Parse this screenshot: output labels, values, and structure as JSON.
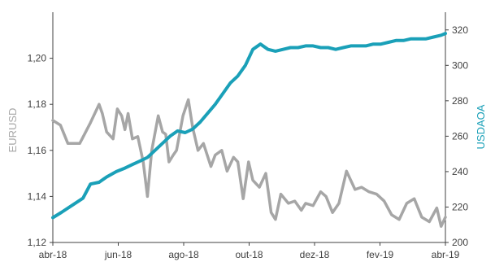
{
  "chart_data": {
    "type": "line",
    "xlabel": "",
    "x_ticks": [
      "abr-18",
      "jun-18",
      "ago-18",
      "out-18",
      "dez-18",
      "fev-19",
      "abr-19"
    ],
    "x_range": [
      "2018-04-02",
      "2019-04-02"
    ],
    "y_left": {
      "label": "EURUSD",
      "range": [
        1.12,
        1.22
      ],
      "ticks": [
        "1,12",
        "1,14",
        "1,16",
        "1,18",
        "1,20"
      ],
      "color": "#a6a6a6"
    },
    "y_right": {
      "label": "USDAOA",
      "range": [
        200,
        330
      ],
      "ticks": [
        "200",
        "220",
        "240",
        "260",
        "280",
        "300",
        "320"
      ],
      "color": "#1aa0b8"
    },
    "grid": false,
    "legend": "none",
    "series": [
      {
        "axis": "left",
        "color": "#a6a6a6",
        "x": [
          "2018-04-02",
          "2018-04-09",
          "2018-04-16",
          "2018-04-20",
          "2018-04-27",
          "2018-05-07",
          "2018-05-15",
          "2018-05-18",
          "2018-05-22",
          "2018-05-28",
          "2018-06-01",
          "2018-06-05",
          "2018-06-08",
          "2018-06-11",
          "2018-06-15",
          "2018-06-20",
          "2018-06-25",
          "2018-06-29",
          "2018-07-03",
          "2018-07-09",
          "2018-07-13",
          "2018-07-16",
          "2018-07-19",
          "2018-07-23",
          "2018-07-26",
          "2018-08-01",
          "2018-08-06",
          "2018-08-10",
          "2018-08-15",
          "2018-08-20",
          "2018-08-27",
          "2018-08-31",
          "2018-09-06",
          "2018-09-11",
          "2018-09-17",
          "2018-09-21",
          "2018-09-26",
          "2018-10-01",
          "2018-10-05",
          "2018-10-11",
          "2018-10-17",
          "2018-10-22",
          "2018-10-26",
          "2018-10-31",
          "2018-11-07",
          "2018-11-13",
          "2018-11-19",
          "2018-11-23",
          "2018-11-30",
          "2018-12-07",
          "2018-12-12",
          "2018-12-18",
          "2018-12-24",
          "2018-12-31",
          "2019-01-08",
          "2019-01-14",
          "2019-01-21",
          "2019-01-28",
          "2019-02-04",
          "2019-02-11",
          "2019-02-18",
          "2019-02-25",
          "2019-03-04",
          "2019-03-11",
          "2019-03-18",
          "2019-03-25",
          "2019-03-29",
          "2019-04-02"
        ],
        "values": [
          1.173,
          1.171,
          1.163,
          1.163,
          1.163,
          1.172,
          1.18,
          1.176,
          1.168,
          1.165,
          1.178,
          1.175,
          1.169,
          1.176,
          1.165,
          1.166,
          1.155,
          1.14,
          1.16,
          1.175,
          1.168,
          1.167,
          1.155,
          1.158,
          1.16,
          1.175,
          1.182,
          1.17,
          1.16,
          1.163,
          1.153,
          1.158,
          1.16,
          1.151,
          1.157,
          1.155,
          1.139,
          1.155,
          1.147,
          1.144,
          1.15,
          1.133,
          1.13,
          1.141,
          1.137,
          1.138,
          1.134,
          1.137,
          1.136,
          1.142,
          1.14,
          1.133,
          1.137,
          1.151,
          1.143,
          1.144,
          1.142,
          1.141,
          1.138,
          1.132,
          1.13,
          1.137,
          1.139,
          1.131,
          1.129,
          1.135,
          1.127,
          1.131
        ]
      },
      {
        "axis": "right",
        "color": "#1aa0b8",
        "x": [
          "2018-04-02",
          "2018-04-10",
          "2018-04-20",
          "2018-04-30",
          "2018-05-07",
          "2018-05-15",
          "2018-05-22",
          "2018-05-31",
          "2018-06-08",
          "2018-06-15",
          "2018-06-22",
          "2018-06-29",
          "2018-07-06",
          "2018-07-13",
          "2018-07-20",
          "2018-07-27",
          "2018-08-03",
          "2018-08-10",
          "2018-08-17",
          "2018-08-24",
          "2018-08-31",
          "2018-09-07",
          "2018-09-14",
          "2018-09-21",
          "2018-09-28",
          "2018-10-05",
          "2018-10-12",
          "2018-10-19",
          "2018-10-26",
          "2018-11-02",
          "2018-11-09",
          "2018-11-16",
          "2018-11-23",
          "2018-11-30",
          "2018-12-07",
          "2018-12-14",
          "2018-12-21",
          "2018-12-28",
          "2019-01-04",
          "2019-01-11",
          "2019-01-18",
          "2019-01-25",
          "2019-02-01",
          "2019-02-08",
          "2019-02-15",
          "2019-02-22",
          "2019-03-01",
          "2019-03-08",
          "2019-03-15",
          "2019-03-22",
          "2019-03-29",
          "2019-04-02"
        ],
        "values": [
          214,
          217,
          221,
          225,
          233,
          234,
          237,
          240,
          242,
          244,
          246,
          248,
          252,
          256,
          260,
          263,
          262,
          264,
          268,
          273,
          278,
          284,
          290,
          294,
          300,
          309,
          312,
          309,
          308,
          309,
          310,
          310,
          311,
          311,
          310,
          310,
          309,
          310,
          311,
          311,
          311,
          312,
          312,
          313,
          314,
          314,
          315,
          315,
          315,
          316,
          317,
          318
        ]
      }
    ]
  }
}
